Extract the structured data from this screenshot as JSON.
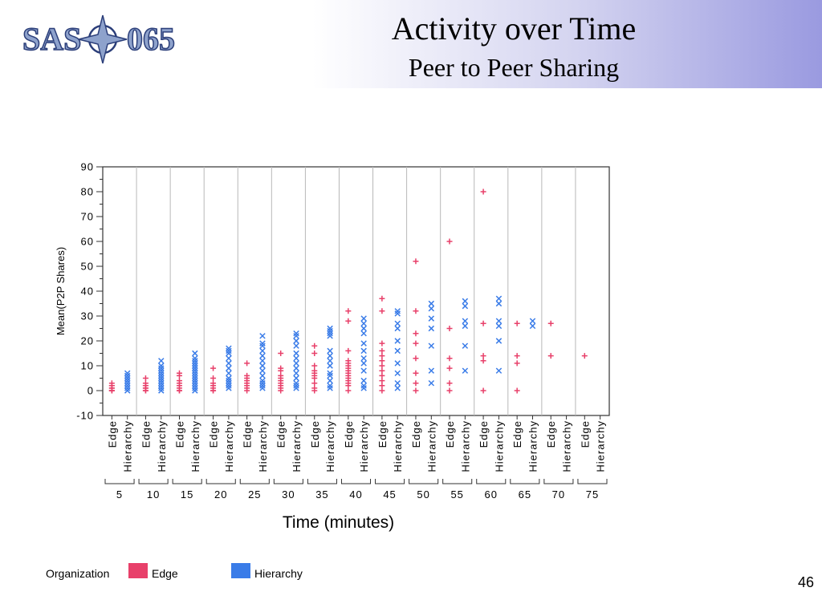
{
  "slide": {
    "title": "Activity over Time",
    "subtitle": "Peer to Peer Sharing",
    "page_number": "46",
    "logo_text": "SAS-065"
  },
  "colors": {
    "edge": "#e8406a",
    "hierarchy": "#3a7ce8",
    "header_gradient_end": "#9a9ae0"
  },
  "chart_data": {
    "type": "scatter",
    "title": "",
    "xlabel": "Time (minutes)",
    "ylabel": "Mean(P2P Shares)",
    "ylim": [
      -10,
      90
    ],
    "y_ticks": [
      -10,
      0,
      10,
      20,
      30,
      40,
      50,
      60,
      70,
      80,
      90
    ],
    "x_groups": [
      "5",
      "10",
      "15",
      "20",
      "25",
      "30",
      "35",
      "40",
      "45",
      "50",
      "55",
      "60",
      "65",
      "70",
      "75"
    ],
    "x_subcategories": [
      "Edge",
      "Hierarchy"
    ],
    "grid": "vertical separators between time groups",
    "legend": {
      "title": "Organization",
      "placement": "bottom",
      "entries": [
        "Edge",
        "Hierarchy"
      ]
    },
    "series": [
      {
        "name": "Edge",
        "marker": "+",
        "color": "#e8406a",
        "values": [
          [
            0,
            0,
            0,
            1,
            1,
            2,
            2,
            3
          ],
          [
            0,
            0,
            1,
            1,
            2,
            2,
            3,
            5
          ],
          [
            0,
            0,
            1,
            2,
            3,
            4,
            6,
            7
          ],
          [
            0,
            0,
            1,
            2,
            3,
            5,
            9
          ],
          [
            0,
            1,
            2,
            3,
            4,
            5,
            6,
            11
          ],
          [
            0,
            1,
            2,
            3,
            4,
            5,
            6,
            8,
            9,
            15
          ],
          [
            0,
            1,
            3,
            5,
            6,
            7,
            8,
            10,
            15,
            18
          ],
          [
            0,
            2,
            3,
            4,
            5,
            6,
            7,
            8,
            9,
            10,
            11,
            12,
            16,
            28,
            32
          ],
          [
            0,
            2,
            4,
            6,
            8,
            10,
            12,
            14,
            16,
            19,
            32,
            37
          ],
          [
            0,
            3,
            7,
            13,
            19,
            23,
            32,
            52
          ],
          [
            0,
            3,
            9,
            13,
            25,
            60
          ],
          [
            0,
            12,
            14,
            27,
            80
          ],
          [
            0,
            11,
            14,
            27
          ],
          [
            14,
            27
          ],
          [
            14
          ]
        ]
      },
      {
        "name": "Hierarchy",
        "marker": "x",
        "color": "#3a7ce8",
        "values": [
          [
            0,
            1,
            2,
            3,
            4,
            5,
            6,
            7
          ],
          [
            0,
            1,
            2,
            3,
            4,
            5,
            6,
            7,
            8,
            9,
            10,
            12
          ],
          [
            0,
            1,
            2,
            3,
            4,
            5,
            6,
            7,
            8,
            9,
            10,
            11,
            12,
            13,
            15
          ],
          [
            1,
            2,
            3,
            4,
            5,
            7,
            9,
            11,
            13,
            15,
            16,
            17
          ],
          [
            1,
            2,
            3,
            4,
            6,
            8,
            10,
            12,
            14,
            16,
            18,
            19,
            22
          ],
          [
            1,
            2,
            3,
            5,
            7,
            9,
            11,
            13,
            15,
            18,
            20,
            22,
            23
          ],
          [
            1,
            2,
            4,
            6,
            7,
            10,
            12,
            14,
            16,
            22,
            23,
            24,
            25
          ],
          [
            1,
            2,
            4,
            8,
            11,
            13,
            16,
            19,
            23,
            25,
            27,
            29
          ],
          [
            1,
            3,
            7,
            11,
            16,
            20,
            25,
            27,
            31,
            32
          ],
          [
            3,
            8,
            18,
            25,
            29,
            33,
            35
          ],
          [
            8,
            18,
            26,
            28,
            34,
            36
          ],
          [
            8,
            20,
            26,
            28,
            35,
            37
          ],
          [
            26,
            28
          ],
          [],
          []
        ]
      }
    ]
  }
}
